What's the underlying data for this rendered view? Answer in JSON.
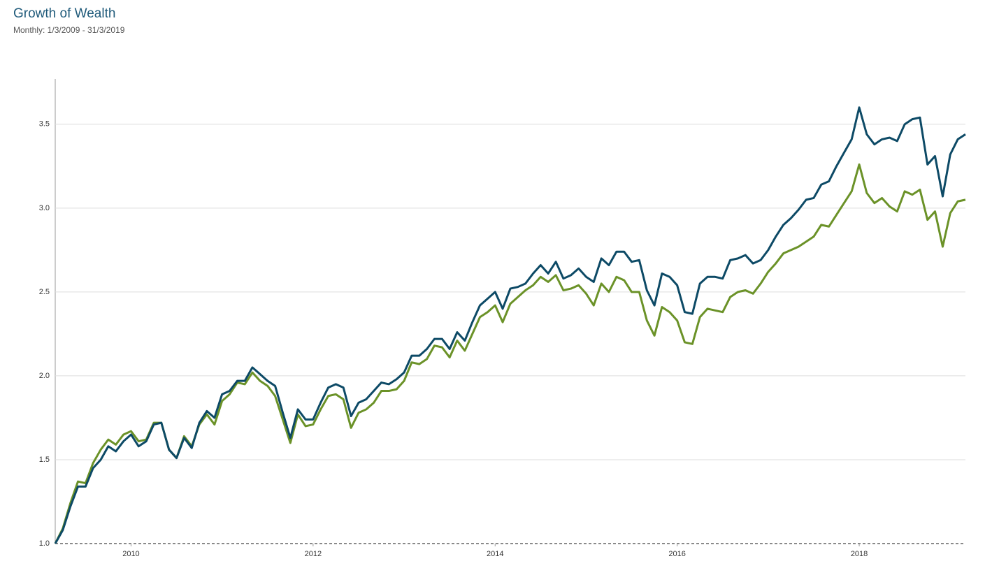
{
  "chart_data": {
    "type": "line",
    "title": "Growth of Wealth",
    "subtitle": "Monthly: 1/3/2009 - 31/3/2019",
    "x": [
      2009.167,
      2009.25,
      2009.333,
      2009.417,
      2009.5,
      2009.583,
      2009.667,
      2009.75,
      2009.833,
      2009.917,
      2010,
      2010.083,
      2010.167,
      2010.25,
      2010.333,
      2010.417,
      2010.5,
      2010.583,
      2010.667,
      2010.75,
      2010.833,
      2010.917,
      2011,
      2011.083,
      2011.167,
      2011.25,
      2011.333,
      2011.417,
      2011.5,
      2011.583,
      2011.667,
      2011.75,
      2011.833,
      2011.917,
      2012,
      2012.083,
      2012.167,
      2012.25,
      2012.333,
      2012.417,
      2012.5,
      2012.583,
      2012.667,
      2012.75,
      2012.833,
      2012.917,
      2013,
      2013.083,
      2013.167,
      2013.25,
      2013.333,
      2013.417,
      2013.5,
      2013.583,
      2013.667,
      2013.75,
      2013.833,
      2013.917,
      2014,
      2014.083,
      2014.167,
      2014.25,
      2014.333,
      2014.417,
      2014.5,
      2014.583,
      2014.667,
      2014.75,
      2014.833,
      2014.917,
      2015,
      2015.083,
      2015.167,
      2015.25,
      2015.333,
      2015.417,
      2015.5,
      2015.583,
      2015.667,
      2015.75,
      2015.833,
      2015.917,
      2016,
      2016.083,
      2016.167,
      2016.25,
      2016.333,
      2016.417,
      2016.5,
      2016.583,
      2016.667,
      2016.75,
      2016.833,
      2016.917,
      2017,
      2017.083,
      2017.167,
      2017.25,
      2017.333,
      2017.417,
      2017.5,
      2017.583,
      2017.667,
      2017.75,
      2017.833,
      2017.917,
      2018,
      2018.083,
      2018.167,
      2018.25,
      2018.333,
      2018.417,
      2018.5,
      2018.583,
      2018.667,
      2018.75,
      2018.833,
      2018.917,
      2019,
      2019.083,
      2019.167
    ],
    "series": [
      {
        "color": "#0d4a66",
        "values": [
          1.0,
          1.08,
          1.22,
          1.34,
          1.34,
          1.45,
          1.5,
          1.58,
          1.55,
          1.61,
          1.65,
          1.58,
          1.61,
          1.71,
          1.72,
          1.56,
          1.51,
          1.63,
          1.57,
          1.72,
          1.79,
          1.75,
          1.89,
          1.91,
          1.97,
          1.97,
          2.05,
          2.01,
          1.97,
          1.94,
          1.78,
          1.63,
          1.8,
          1.74,
          1.74,
          1.84,
          1.93,
          1.95,
          1.93,
          1.76,
          1.84,
          1.86,
          1.91,
          1.96,
          1.95,
          1.98,
          2.02,
          2.12,
          2.12,
          2.16,
          2.22,
          2.22,
          2.16,
          2.26,
          2.21,
          2.32,
          2.42,
          2.46,
          2.5,
          2.4,
          2.52,
          2.53,
          2.55,
          2.61,
          2.66,
          2.61,
          2.68,
          2.58,
          2.6,
          2.64,
          2.59,
          2.56,
          2.7,
          2.66,
          2.74,
          2.74,
          2.68,
          2.69,
          2.51,
          2.42,
          2.61,
          2.59,
          2.54,
          2.38,
          2.37,
          2.55,
          2.59,
          2.59,
          2.58,
          2.69,
          2.7,
          2.72,
          2.67,
          2.69,
          2.75,
          2.83,
          2.9,
          2.94,
          2.99,
          3.05,
          3.06,
          3.14,
          3.16,
          3.25,
          3.33,
          3.41,
          3.6,
          3.44,
          3.38,
          3.41,
          3.42,
          3.4,
          3.5,
          3.53,
          3.54,
          3.26,
          3.31,
          3.07,
          3.32,
          3.41,
          3.44
        ]
      },
      {
        "color": "#6b9228",
        "values": [
          1.0,
          1.09,
          1.24,
          1.37,
          1.36,
          1.48,
          1.56,
          1.62,
          1.59,
          1.65,
          1.67,
          1.61,
          1.62,
          1.72,
          1.72,
          1.56,
          1.51,
          1.64,
          1.58,
          1.71,
          1.77,
          1.71,
          1.85,
          1.89,
          1.96,
          1.95,
          2.02,
          1.97,
          1.94,
          1.88,
          1.74,
          1.6,
          1.77,
          1.7,
          1.71,
          1.8,
          1.88,
          1.89,
          1.86,
          1.69,
          1.78,
          1.8,
          1.84,
          1.91,
          1.91,
          1.92,
          1.97,
          2.08,
          2.07,
          2.1,
          2.18,
          2.17,
          2.11,
          2.21,
          2.15,
          2.25,
          2.35,
          2.38,
          2.42,
          2.32,
          2.43,
          2.47,
          2.51,
          2.54,
          2.59,
          2.56,
          2.6,
          2.51,
          2.52,
          2.54,
          2.49,
          2.42,
          2.55,
          2.5,
          2.59,
          2.57,
          2.5,
          2.5,
          2.33,
          2.24,
          2.41,
          2.38,
          2.33,
          2.2,
          2.19,
          2.35,
          2.4,
          2.39,
          2.38,
          2.47,
          2.5,
          2.51,
          2.49,
          2.55,
          2.62,
          2.67,
          2.73,
          2.75,
          2.77,
          2.8,
          2.83,
          2.9,
          2.89,
          2.96,
          3.03,
          3.1,
          3.26,
          3.09,
          3.03,
          3.06,
          3.01,
          2.98,
          3.1,
          3.08,
          3.11,
          2.93,
          2.98,
          2.77,
          2.97,
          3.04,
          3.05
        ]
      }
    ],
    "xlim": [
      2009.167,
      2019.167
    ],
    "xticks": [
      2010,
      2012,
      2014,
      2016,
      2018
    ],
    "ylim": [
      1.0,
      3.77
    ],
    "yticks": [
      {
        "value": 1,
        "label": "1.0"
      },
      1.5,
      {
        "value": 2,
        "label": "2.0"
      },
      2.5,
      {
        "value": 3,
        "label": "3.0"
      },
      3.5
    ],
    "grid": true
  }
}
